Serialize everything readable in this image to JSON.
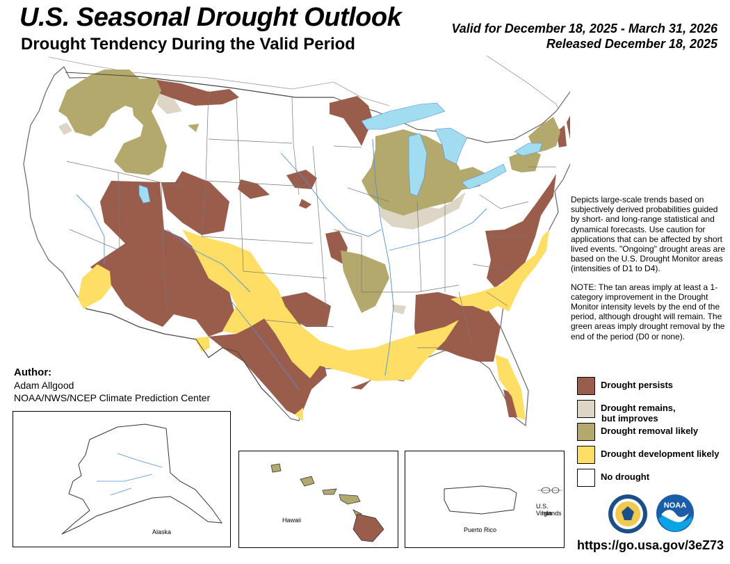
{
  "header": {
    "title": "U.S. Seasonal Drought Outlook",
    "subtitle": "Drought Tendency During the Valid Period",
    "valid_period": "Valid for December 18, 2025 - March 31, 2026",
    "released": "Released December 18, 2025"
  },
  "description": {
    "paragraph1": "Depicts large-scale trends based on subjectively derived probabilities guided by short- and long-range statistical and dynamical forecasts. Use caution for applications that can be affected by short lived events. \"Ongoing\" drought areas are based on the U.S. Drought Monitor areas (intensities of D1 to D4).",
    "paragraph2": "NOTE: The tan areas imply at least a 1-category improvement in the Drought Monitor intensity levels by the end of the period, although drought will remain. The green areas imply drought removal by the end of the period (D0 or none)."
  },
  "legend": {
    "items": [
      {
        "label": "Drought persists",
        "color": "#9b5d4b"
      },
      {
        "label": "Drought remains,",
        "label2": "but improves",
        "color": "#ddd5c5"
      },
      {
        "label": "Drought removal likely",
        "color": "#b3a96c"
      },
      {
        "label": "Drought development likely",
        "color": "#fede64"
      },
      {
        "label": "No drought",
        "color": "#ffffff"
      }
    ]
  },
  "author": {
    "heading": "Author:",
    "name": "Adam Allgood",
    "org": "NOAA/NWS/NCEP Climate Prediction Center"
  },
  "insets": {
    "alaska": "Alaska",
    "hawaii": "Hawaii",
    "puerto_rico": "Puerto Rico",
    "virgin_islands_1": "U.S. Virgin",
    "virgin_islands_2": "Islands"
  },
  "url": "https://go.usa.gov/3eZ73",
  "logos": {
    "doc": "department-of-commerce-seal",
    "noaa": "NOAA"
  },
  "colors": {
    "persists": "#9b5d4b",
    "improves": "#ddd5c5",
    "removal": "#b3a96c",
    "development": "#fede64",
    "water": "#a1dcf0",
    "rivers": "#4e8fe0"
  }
}
